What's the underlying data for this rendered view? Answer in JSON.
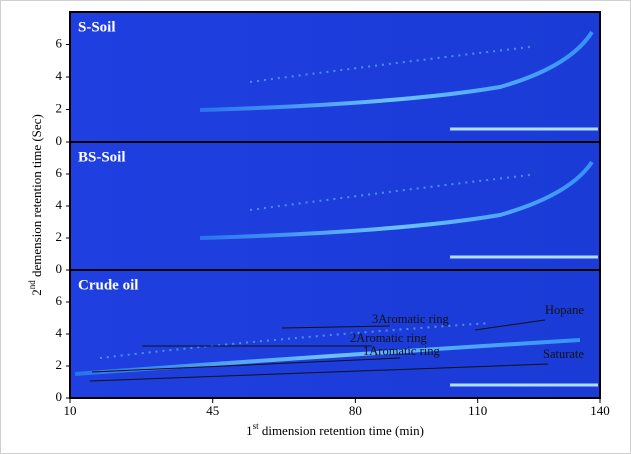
{
  "chart_data": [
    {
      "type": "heatmap",
      "title": "S-Soil",
      "ylim": [
        0,
        8
      ],
      "yticks": [
        0,
        2,
        4,
        6
      ]
    },
    {
      "type": "heatmap",
      "title": "BS-Soil",
      "ylim": [
        0,
        8
      ],
      "yticks": [
        0,
        2,
        4,
        6
      ],
      "ylabel": [
        "2",
        "nd",
        " demension retention time (Sec)"
      ]
    },
    {
      "type": "heatmap",
      "title": "Crude oil",
      "ylim": [
        0,
        8
      ],
      "yticks": [
        0,
        2,
        4,
        6
      ],
      "xlim": [
        10,
        140
      ],
      "xticks": [
        10,
        45,
        80,
        110,
        140
      ],
      "xlabel": [
        "1",
        "st",
        " dimension retention time (min)"
      ],
      "annotations": [
        "3Aromatic ring",
        "2Aromatic ring",
        "1Aromatic ring",
        "Hopane",
        "Saturate"
      ]
    }
  ]
}
